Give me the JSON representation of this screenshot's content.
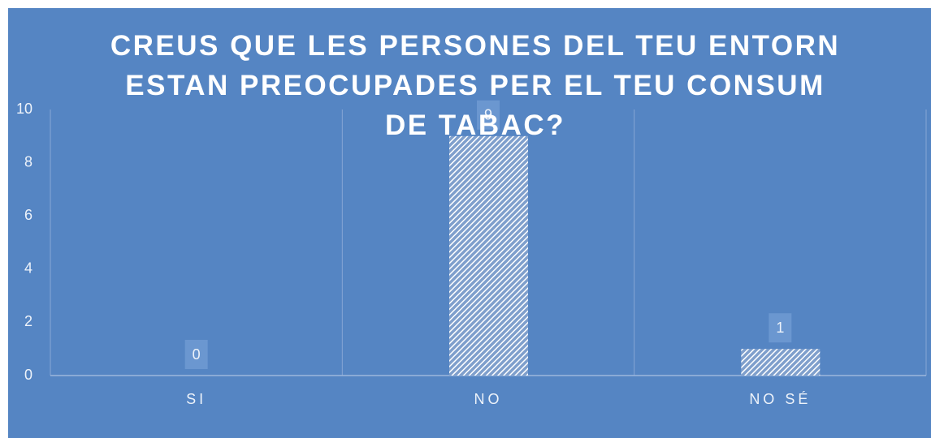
{
  "chart_data": {
    "type": "bar",
    "title": "CREUS QUE LES PERSONES DEL TEU ENTORN ESTAN PREOCUPADES PER EL TEU CONSUM DE TABAC?",
    "categories": [
      "SI",
      "NO",
      "NO SÉ"
    ],
    "values": [
      0,
      9,
      1
    ],
    "color": "#ffffff",
    "ylim": [
      0,
      10
    ],
    "yticks": [
      0,
      2,
      4,
      6,
      8,
      10
    ],
    "grid": false
  }
}
